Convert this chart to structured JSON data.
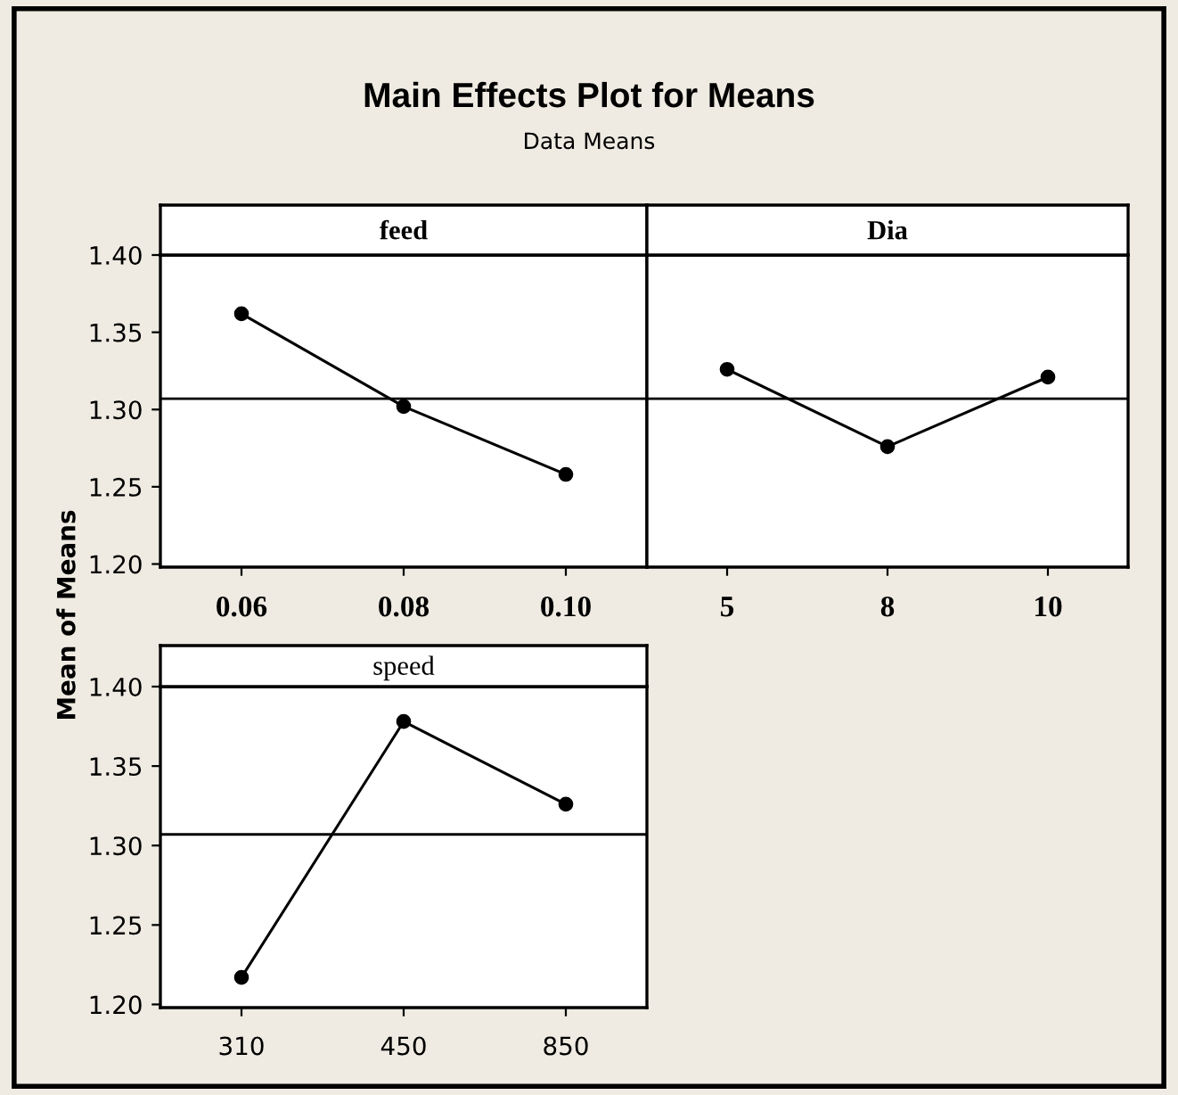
{
  "chart_data": [
    {
      "type": "line",
      "title": "Main Effects Plot for Means",
      "subtitle": "Data Means",
      "ylabel": "Mean of Means",
      "annotations": [
        "feed"
      ],
      "categories": [
        "0.06",
        "0.08",
        "0.10"
      ],
      "series": [
        {
          "color": "#000000",
          "values": [
            1.362,
            1.302,
            1.258
          ]
        }
      ],
      "ylim": [
        1.198,
        1.4
      ],
      "yticks": [
        {
          "value": 1.2,
          "label": "1.20"
        },
        {
          "value": 1.25,
          "label": "1.25"
        },
        {
          "value": 1.3,
          "label": "1.30"
        },
        {
          "value": 1.35,
          "label": "1.35"
        },
        {
          "value": 1.4,
          "label": "1.40"
        }
      ],
      "ref_lines": [
        {
          "axis": "y",
          "value": 1.307,
          "color": "#000000"
        }
      ],
      "marker": "circle",
      "line_style": "solid",
      "grid": false,
      "legend": false
    },
    {
      "type": "line",
      "annotations": [
        "Dia"
      ],
      "categories": [
        "5",
        "8",
        "10"
      ],
      "series": [
        {
          "color": "#000000",
          "values": [
            1.326,
            1.276,
            1.321
          ]
        }
      ],
      "ylim": [
        1.198,
        1.4
      ],
      "tick_labels": "x",
      "ref_lines": [
        {
          "axis": "y",
          "value": 1.307,
          "color": "#000000"
        }
      ],
      "marker": "circle",
      "line_style": "solid",
      "grid": false,
      "legend": false
    },
    {
      "type": "line",
      "annotations": [
        "speed"
      ],
      "categories": [
        "310",
        "450",
        "850"
      ],
      "series": [
        {
          "color": "#000000",
          "values": [
            1.217,
            1.378,
            1.326
          ]
        }
      ],
      "ylim": [
        1.198,
        1.4
      ],
      "yticks": [
        {
          "value": 1.2,
          "label": "1.20"
        },
        {
          "value": 1.25,
          "label": "1.25"
        },
        {
          "value": 1.3,
          "label": "1.30"
        },
        {
          "value": 1.35,
          "label": "1.35"
        },
        {
          "value": 1.4,
          "label": "1.40"
        }
      ],
      "ref_lines": [
        {
          "axis": "y",
          "value": 1.307,
          "color": "#000000"
        }
      ],
      "marker": "circle",
      "line_style": "solid",
      "grid": false,
      "legend": false
    }
  ]
}
